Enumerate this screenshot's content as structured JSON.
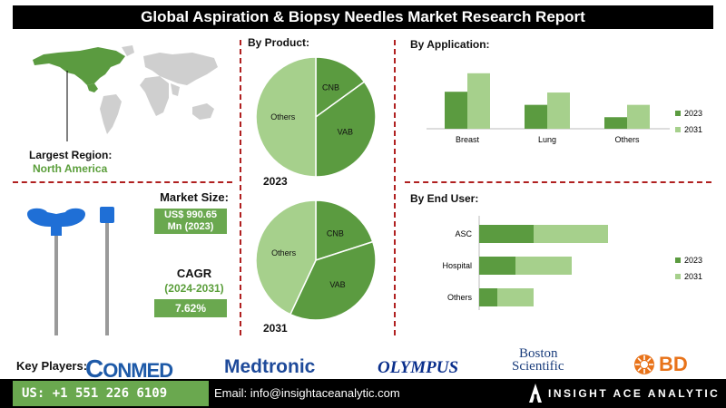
{
  "title": "Global Aspiration & Biopsy Needles Market Research Report",
  "region": {
    "label": "Largest Region:",
    "value": "North America"
  },
  "market_size": {
    "label": "Market Size:",
    "value_line1": "US$ 990.65",
    "value_line2": "Mn (2023)"
  },
  "cagr": {
    "label": "CAGR",
    "period": "(2024-2031)",
    "value": "7.62%"
  },
  "colors": {
    "dark_green": "#5b9b40",
    "light_green": "#a6d08c",
    "accent_green": "#6aa84f",
    "divider_red": "#b02020",
    "needle_blue": "#1f6fd6"
  },
  "chart_data": [
    {
      "type": "pie",
      "title": "By Product:",
      "caption": "2023",
      "labels": [
        "CNB",
        "VAB",
        "Others"
      ],
      "values": [
        15,
        35,
        50
      ]
    },
    {
      "type": "pie",
      "caption": "2031",
      "labels": [
        "CNB",
        "VAB",
        "Others"
      ],
      "values": [
        20,
        37,
        43
      ]
    },
    {
      "type": "bar",
      "title": "By Application:",
      "categories": [
        "Breast",
        "Lung",
        "Others"
      ],
      "series": [
        {
          "name": "2023",
          "values": [
            48,
            31,
            15
          ]
        },
        {
          "name": "2031",
          "values": [
            72,
            47,
            31
          ]
        }
      ],
      "ylim": [
        0,
        80
      ],
      "legend": "right"
    },
    {
      "type": "bar",
      "orientation": "horizontal",
      "stacked": true,
      "title": "By End User:",
      "categories": [
        "ASC",
        "Hospital",
        "Others"
      ],
      "series": [
        {
          "name": "2023",
          "values": [
            30,
            20,
            10
          ]
        },
        {
          "name": "2031",
          "values": [
            41,
            31,
            20
          ]
        }
      ],
      "legend": "right"
    }
  ],
  "key_players": {
    "label": "Key Players:",
    "logos": [
      "ConMed",
      "Medtronic",
      "OLYMPUS",
      "Boston",
      "Scientific",
      "BD"
    ],
    "conmed_c": "C",
    "conmed_rest": "ONMED"
  },
  "footer": {
    "phone": "US: +1 551 226 6109",
    "email": "Email: info@insightaceanalytic.com",
    "brand": "INSIGHT ACE ANALYTIC"
  }
}
